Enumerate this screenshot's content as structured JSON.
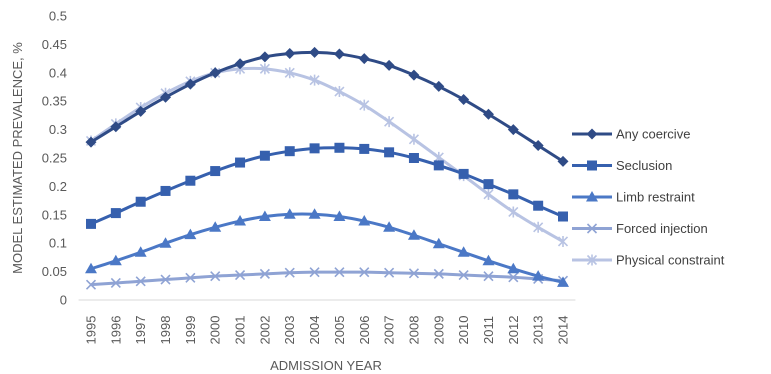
{
  "chart_data": {
    "type": "line",
    "title": "",
    "xlabel": "ADMISSION YEAR",
    "ylabel": "MODEL ESTIMATED PREVALENCE, %",
    "ylim": [
      0,
      0.5
    ],
    "yticks": [
      "0",
      "0.05",
      "0.1",
      "0.15",
      "0.2",
      "0.25",
      "0.3",
      "0.35",
      "0.4",
      "0.45",
      "0.5"
    ],
    "x": [
      "1995",
      "1996",
      "1997",
      "1998",
      "1999",
      "2000",
      "2001",
      "2002",
      "2003",
      "2004",
      "2005",
      "2006",
      "2007",
      "2008",
      "2009",
      "2010",
      "2011",
      "2012",
      "2013",
      "2014"
    ],
    "grid": false,
    "legend_position": "right",
    "series": [
      {
        "name": "Any coercive",
        "color": "#2F4B86",
        "marker": "diamond",
        "values": [
          0.278,
          0.305,
          0.332,
          0.357,
          0.38,
          0.4,
          0.416,
          0.428,
          0.434,
          0.436,
          0.433,
          0.425,
          0.413,
          0.396,
          0.376,
          0.353,
          0.327,
          0.3,
          0.272,
          0.244
        ]
      },
      {
        "name": "Seclusion",
        "color": "#3660AE",
        "marker": "square",
        "values": [
          0.134,
          0.153,
          0.173,
          0.192,
          0.21,
          0.227,
          0.242,
          0.254,
          0.262,
          0.267,
          0.268,
          0.266,
          0.26,
          0.25,
          0.237,
          0.222,
          0.204,
          0.186,
          0.166,
          0.147
        ]
      },
      {
        "name": "Limb restraint",
        "color": "#4B78C6",
        "marker": "triangle",
        "values": [
          0.055,
          0.069,
          0.084,
          0.1,
          0.115,
          0.128,
          0.139,
          0.147,
          0.151,
          0.151,
          0.147,
          0.139,
          0.128,
          0.114,
          0.099,
          0.084,
          0.069,
          0.055,
          0.042,
          0.031
        ]
      },
      {
        "name": "Forced injection",
        "color": "#8FA3D4",
        "marker": "x",
        "values": [
          0.027,
          0.03,
          0.033,
          0.036,
          0.039,
          0.042,
          0.044,
          0.046,
          0.048,
          0.049,
          0.049,
          0.049,
          0.048,
          0.047,
          0.046,
          0.044,
          0.042,
          0.04,
          0.037,
          0.034
        ]
      },
      {
        "name": "Physical constraint",
        "color": "#B8C3E3",
        "marker": "star",
        "values": [
          0.28,
          0.31,
          0.339,
          0.364,
          0.385,
          0.4,
          0.407,
          0.407,
          0.4,
          0.387,
          0.367,
          0.343,
          0.314,
          0.283,
          0.251,
          0.219,
          0.186,
          0.155,
          0.128,
          0.103
        ]
      }
    ]
  }
}
